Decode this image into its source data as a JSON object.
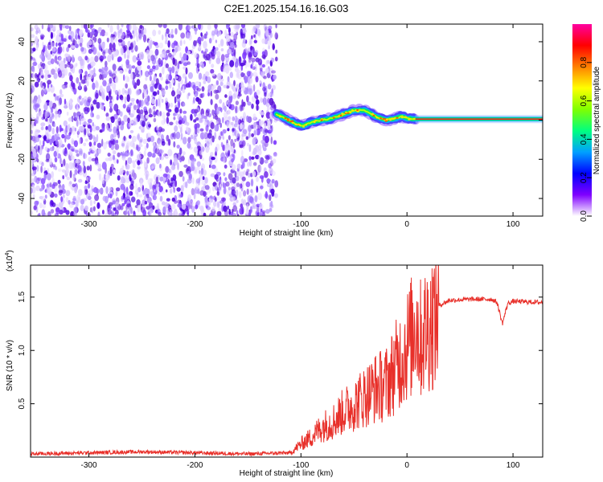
{
  "title": "C2E1.2025.154.16.16.G03",
  "chart_data": [
    {
      "type": "heatmap",
      "xlabel": "Height of straight line (km)",
      "ylabel": "Frequency (Hz)",
      "xlim": [
        -355,
        128
      ],
      "ylim": [
        -49,
        49
      ],
      "x_ticks": [
        -300,
        -200,
        -100,
        0,
        100
      ],
      "y_ticks": [
        -40,
        -20,
        0,
        20,
        40
      ],
      "colorbar": {
        "label": "Normalized spectral amplitude",
        "range": [
          0.0,
          1.0
        ],
        "ticks": [
          0.0,
          0.2,
          0.4,
          0.6,
          0.8
        ],
        "tick_labels": [
          "0.0",
          "0.2",
          "0.4",
          "0.6",
          "0.8"
        ],
        "colormap": [
          "#ffffff",
          "#7f00ff",
          "#0000ff",
          "#00a0ff",
          "#00ff80",
          "#80ff00",
          "#ffff00",
          "#ff8000",
          "#ff0000",
          "#ff00a0"
        ]
      },
      "noise_region_x": [
        -355,
        -123
      ],
      "signal_track": {
        "x": [
          -123,
          -115,
          -105,
          -98,
          -90,
          -80,
          -70,
          -60,
          -50,
          -40,
          -30,
          -20,
          -10,
          -5,
          0,
          8,
          20,
          50,
          80,
          100,
          128
        ],
        "y": [
          3,
          1,
          -2,
          -3,
          -1,
          0,
          1,
          3,
          5,
          5,
          2,
          0,
          1,
          2,
          1,
          0.5,
          0.5,
          0.5,
          0.5,
          0.5,
          0.5
        ]
      }
    },
    {
      "type": "line",
      "xlabel": "Height of straight line (km)",
      "ylabel": "SNR (10 * v/v)",
      "y_multiplier_label": "(x10",
      "y_multiplier_exp": "4",
      "y_multiplier_close": ")",
      "xlim": [
        -355,
        128
      ],
      "ylim": [
        0,
        18000
      ],
      "x_ticks": [
        -300,
        -200,
        -100,
        0,
        100
      ],
      "y_ticks": [
        5000,
        10000,
        15000
      ],
      "y_tick_labels": [
        "0.5",
        "1.0",
        "1.5"
      ],
      "series": [
        {
          "color": "#e8302a",
          "x": [
            -355,
            -300,
            -250,
            -200,
            -150,
            -110,
            -100,
            -90,
            -80,
            -70,
            -60,
            -50,
            -40,
            -30,
            -20,
            -10,
            0,
            5,
            8,
            12,
            20,
            30,
            40,
            60,
            80,
            85,
            90,
            95,
            100,
            128
          ],
          "y": [
            300,
            400,
            500,
            400,
            300,
            400,
            1300,
            2000,
            3000,
            3500,
            4500,
            5200,
            6000,
            6800,
            7200,
            9000,
            11000,
            12000,
            14000,
            11500,
            13000,
            14200,
            14700,
            14800,
            14800,
            14500,
            12500,
            14400,
            14600,
            14500
          ]
        }
      ]
    }
  ]
}
